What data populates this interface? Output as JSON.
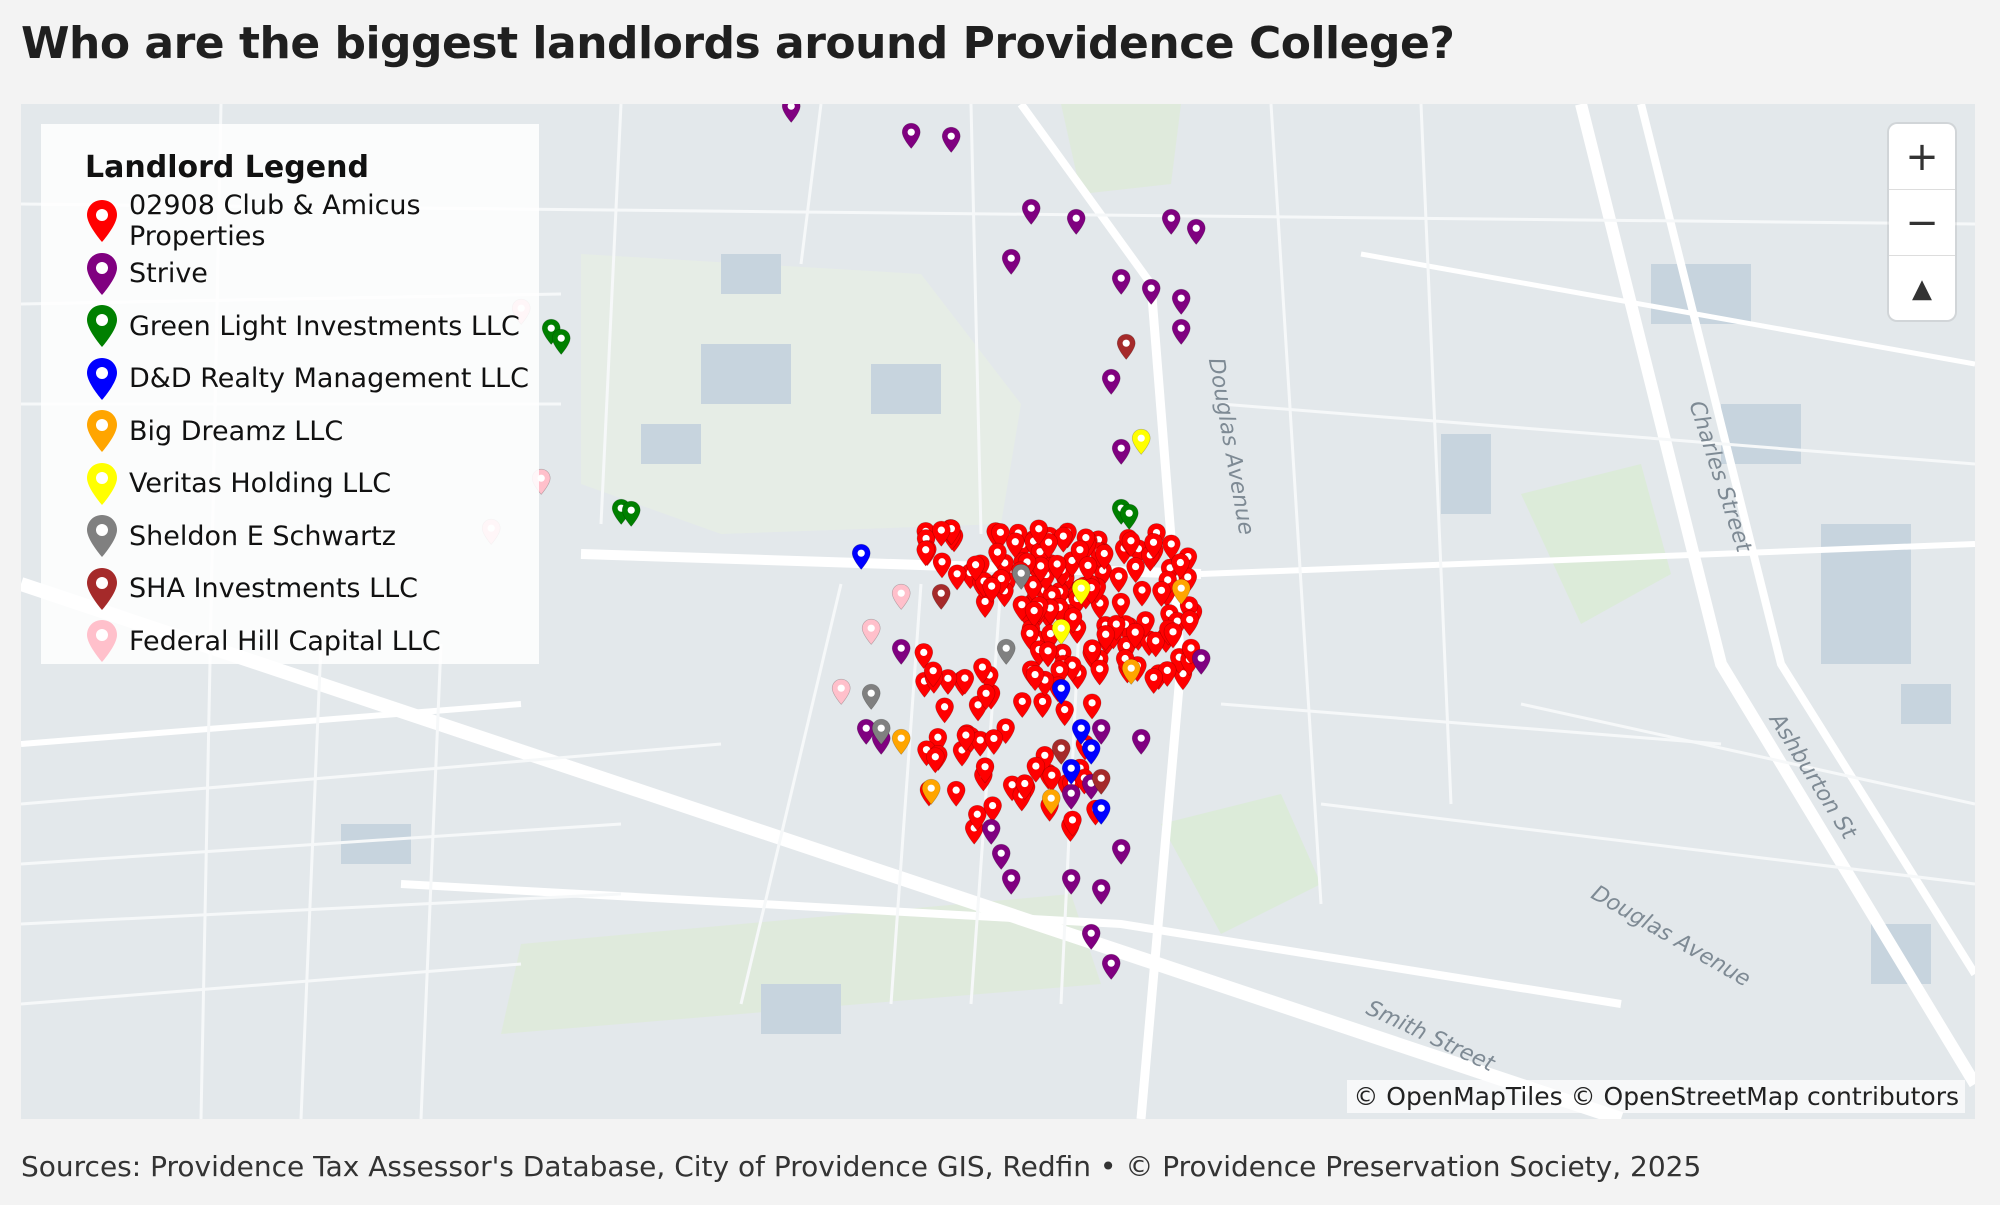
{
  "title": "Who are the biggest landlords around Providence College?",
  "legend": {
    "title": "Landlord Legend",
    "items": [
      {
        "label": "02908 Club & Amicus Properties",
        "color": "#ff0000"
      },
      {
        "label": "Strive",
        "color": "#800080"
      },
      {
        "label": "Green Light Investments LLC",
        "color": "#008000"
      },
      {
        "label": "D&D Realty Management LLC",
        "color": "#0000ff"
      },
      {
        "label": "Big Dreamz LLC",
        "color": "#ffa500"
      },
      {
        "label": "Veritas Holding LLC",
        "color": "#ffff00"
      },
      {
        "label": "Sheldon E Schwartz",
        "color": "#808080"
      },
      {
        "label": "SHA Investments LLC",
        "color": "#a52a2a"
      },
      {
        "label": "Federal Hill Capital LLC",
        "color": "#ffc0cb"
      }
    ]
  },
  "zoom": {
    "in": "+",
    "out": "−",
    "compass": "▲"
  },
  "streets": {
    "douglas_avenue": "Douglas Avenue",
    "charles_street": "Charles Street",
    "ashburton": "Ashburton St",
    "douglas_lower": "Douglas Avenue",
    "smith_street": "Smith Street"
  },
  "attribution": "© OpenMapTiles © OpenStreetMap contributors",
  "source": "Sources: Providence Tax Assessor's Database, City of Providence GIS, Redfin • © Providence Preservation Society, 2025"
}
